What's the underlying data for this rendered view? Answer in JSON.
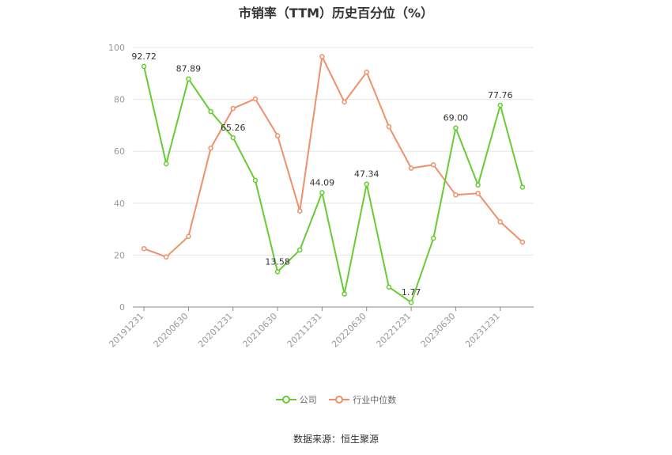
{
  "chart_data": {
    "type": "line",
    "title": "市销率（TTM）历史百分位（%）",
    "x": [
      "20191231",
      "20200331",
      "20200630",
      "20200930",
      "20201231",
      "20210331",
      "20210630",
      "20210930",
      "20211231",
      "20220331",
      "20220630",
      "20220930",
      "20221231",
      "20230331",
      "20230630",
      "20230930",
      "20231231",
      "20240331"
    ],
    "xtick_labels": [
      "20191231",
      "20200630",
      "20201231",
      "20210630",
      "20211231",
      "20220630",
      "20221231",
      "20230630",
      "20231231"
    ],
    "ylim": [
      0,
      100
    ],
    "yticks": [
      0,
      20,
      40,
      60,
      80,
      100
    ],
    "grid": true,
    "legend_position": "bottom",
    "series": [
      {
        "name": "公司",
        "color": "#66cc33",
        "values": [
          92.72,
          55.2,
          87.89,
          75.3,
          65.26,
          48.8,
          13.58,
          22.0,
          44.09,
          5.0,
          47.34,
          7.7,
          1.77,
          26.5,
          69.0,
          47.0,
          77.76,
          46.2
        ],
        "labeled": {
          "0": "92.72",
          "2": "87.89",
          "4": "65.26",
          "6": "13.58",
          "8": "44.09",
          "10": "47.34",
          "12": "1.77",
          "14": "69.00",
          "16": "77.76"
        }
      },
      {
        "name": "行业中位数",
        "color": "#f0906a",
        "values": [
          22.5,
          19.3,
          27.2,
          61.2,
          76.5,
          80.2,
          66.0,
          37.0,
          96.5,
          79.0,
          90.5,
          69.5,
          53.5,
          54.8,
          43.2,
          43.8,
          32.8,
          25.0
        ]
      }
    ]
  },
  "legend": {
    "company": "公司",
    "industry": "行业中位数"
  },
  "source": "数据来源：恒生聚源"
}
